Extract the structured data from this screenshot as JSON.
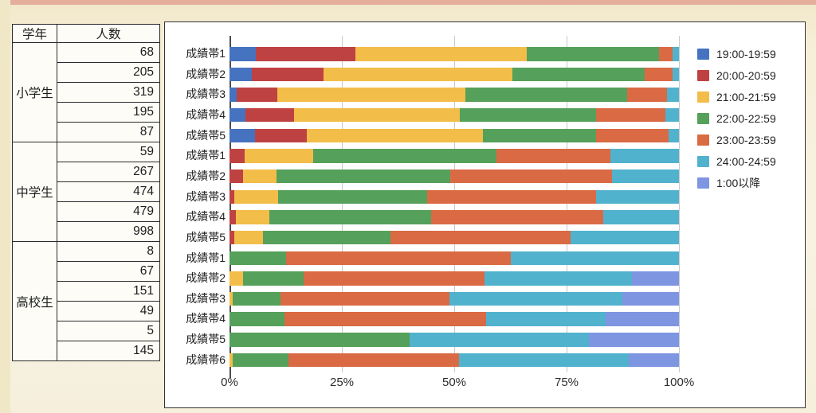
{
  "page": {
    "background": "#f6efd9",
    "scan_top_strip_color": "#e2a294"
  },
  "table": {
    "headers": [
      "学年",
      "人数"
    ],
    "groups": [
      {
        "grade": "小学生",
        "counts": [
          68,
          205,
          319,
          195,
          87
        ]
      },
      {
        "grade": "中学生",
        "counts": [
          59,
          267,
          474,
          479,
          998
        ]
      },
      {
        "grade": "高校生",
        "counts": [
          8,
          67,
          151,
          49,
          5,
          145
        ]
      }
    ]
  },
  "chart_data": {
    "type": "bar",
    "orientation": "horizontal",
    "stacked": true,
    "unit": "percent of row total",
    "title": "",
    "xlabel": "",
    "ylabel": "",
    "x_axis": {
      "range": [
        0,
        100
      ],
      "ticks": [
        "0%",
        "25%",
        "50%",
        "75%",
        "100%"
      ],
      "grid": true
    },
    "legend_position": "right",
    "series_labels": [
      "19:00-19:59",
      "20:00-20:59",
      "21:00-21:59",
      "22:00-22:59",
      "23:00-23:59",
      "24:00-24:59",
      "1:00以降"
    ],
    "series_colors": [
      "#4573c0",
      "#bf4242",
      "#f2bd49",
      "#55a05a",
      "#da6a43",
      "#51b2cd",
      "#7e95e2"
    ],
    "rows": [
      {
        "group": "小学生",
        "label": "成績帯1",
        "values": [
          5.9,
          22.1,
          38.2,
          29.4,
          2.9,
          1.5,
          0
        ]
      },
      {
        "group": "小学生",
        "label": "成績帯2",
        "values": [
          4.9,
          16.1,
          42.0,
          29.3,
          6.3,
          1.4,
          0
        ]
      },
      {
        "group": "小学生",
        "label": "成績帯3",
        "values": [
          1.6,
          9.1,
          41.7,
          36.1,
          8.8,
          2.7,
          0
        ]
      },
      {
        "group": "小学生",
        "label": "成績帯4",
        "values": [
          3.6,
          10.8,
          36.9,
          30.3,
          15.4,
          3.0,
          0
        ]
      },
      {
        "group": "小学生",
        "label": "成績帯5",
        "values": [
          5.7,
          11.5,
          39.1,
          25.3,
          16.1,
          2.3,
          0
        ]
      },
      {
        "group": "中学生",
        "label": "成績帯1",
        "values": [
          0,
          3.4,
          15.3,
          40.7,
          25.4,
          15.2,
          0
        ]
      },
      {
        "group": "中学生",
        "label": "成績帯2",
        "values": [
          0,
          3.0,
          7.5,
          38.6,
          36.0,
          14.9,
          0
        ]
      },
      {
        "group": "中学生",
        "label": "成績帯3",
        "values": [
          0,
          1.1,
          9.7,
          33.1,
          37.6,
          18.5,
          0
        ]
      },
      {
        "group": "中学生",
        "label": "成績帯4",
        "values": [
          0,
          1.5,
          7.3,
          36.1,
          38.2,
          16.9,
          0
        ]
      },
      {
        "group": "中学生",
        "label": "成績帯5",
        "values": [
          0,
          1.0,
          6.5,
          28.3,
          40.1,
          24.1,
          0
        ]
      },
      {
        "group": "高校生",
        "label": "成績帯1",
        "values": [
          0,
          0,
          0,
          12.5,
          50.0,
          37.5,
          0
        ]
      },
      {
        "group": "高校生",
        "label": "成績帯2",
        "values": [
          0,
          0,
          3.0,
          13.4,
          40.3,
          32.8,
          10.5
        ]
      },
      {
        "group": "高校生",
        "label": "成績帯3",
        "values": [
          0,
          0,
          0.7,
          10.6,
          37.7,
          38.4,
          12.6
        ]
      },
      {
        "group": "高校生",
        "label": "成績帯4",
        "values": [
          0,
          0,
          0,
          12.2,
          44.9,
          26.5,
          16.4
        ]
      },
      {
        "group": "高校生",
        "label": "成績帯5",
        "values": [
          0,
          0,
          0,
          40.0,
          0,
          40.0,
          20.0
        ]
      },
      {
        "group": "高校生",
        "label": "成績帯6",
        "values": [
          0,
          0,
          0.7,
          12.4,
          37.9,
          37.9,
          11.1
        ]
      }
    ]
  }
}
